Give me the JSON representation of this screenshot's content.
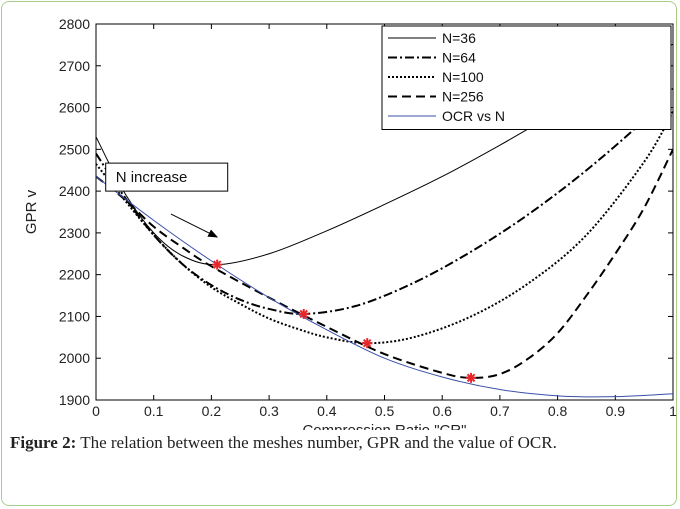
{
  "chart_data": {
    "type": "line",
    "title": "",
    "xlabel": "Compression Ratio \"CR\"",
    "ylabel": "GPR v",
    "xlim": [
      0,
      1
    ],
    "ylim": [
      1900,
      2800
    ],
    "xticks": [
      0,
      0.1,
      0.2,
      0.3,
      0.4,
      0.5,
      0.6,
      0.7,
      0.8,
      0.9,
      1
    ],
    "xtick_labels": [
      "0",
      "0.1",
      "0.2",
      "0.3",
      "0.4",
      "0.5",
      "0.6",
      "0.7",
      "0.8",
      "0.9",
      "1"
    ],
    "yticks": [
      1900,
      2000,
      2100,
      2200,
      2300,
      2400,
      2500,
      2600,
      2700,
      2800
    ],
    "grid": false,
    "legend": "top-right",
    "series": [
      {
        "name": "N=36",
        "style": "solid",
        "color": "#000000",
        "x": [
          0,
          0.05,
          0.1,
          0.15,
          0.21,
          0.3,
          0.4,
          0.5,
          0.6,
          0.7,
          0.8,
          0.9,
          1
        ],
        "y": [
          2530,
          2395,
          2300,
          2245,
          2224,
          2250,
          2305,
          2368,
          2435,
          2510,
          2590,
          2670,
          2752
        ]
      },
      {
        "name": "N=64",
        "style": "dashdot",
        "color": "#000000",
        "x": [
          0,
          0.05,
          0.1,
          0.15,
          0.2,
          0.25,
          0.3,
          0.36,
          0.45,
          0.55,
          0.65,
          0.75,
          0.85,
          0.95,
          1
        ],
        "y": [
          2490,
          2385,
          2295,
          2225,
          2175,
          2140,
          2118,
          2106,
          2125,
          2180,
          2255,
          2345,
          2450,
          2570,
          2645
        ]
      },
      {
        "name": "N=100",
        "style": "dotted",
        "color": "#000000",
        "x": [
          0,
          0.05,
          0.1,
          0.15,
          0.2,
          0.25,
          0.3,
          0.35,
          0.4,
          0.47,
          0.55,
          0.65,
          0.75,
          0.85,
          0.95,
          1
        ],
        "y": [
          2465,
          2378,
          2295,
          2225,
          2170,
          2130,
          2095,
          2070,
          2050,
          2036,
          2050,
          2100,
          2180,
          2295,
          2470,
          2590
        ]
      },
      {
        "name": "N=256",
        "style": "dashed",
        "color": "#000000",
        "x": [
          0,
          0.05,
          0.1,
          0.15,
          0.2,
          0.3,
          0.4,
          0.5,
          0.6,
          0.65,
          0.7,
          0.75,
          0.8,
          0.85,
          0.9,
          0.95,
          1
        ],
        "y": [
          2435,
          2380,
          2315,
          2265,
          2220,
          2145,
          2075,
          2010,
          1965,
          1953,
          1962,
          2000,
          2060,
          2150,
          2250,
          2360,
          2500
        ]
      },
      {
        "name": "OCR vs N",
        "style": "solid",
        "color": "#3a4fa8",
        "x": [
          0,
          0.1,
          0.2,
          0.3,
          0.4,
          0.5,
          0.6,
          0.7,
          0.8,
          0.9,
          1
        ],
        "y": [
          2435,
          2330,
          2233,
          2145,
          2068,
          2000,
          1955,
          1925,
          1910,
          1908,
          1915
        ]
      }
    ],
    "markers": {
      "color": "#e8262a",
      "x": [
        0.21,
        0.36,
        0.47,
        0.65
      ],
      "y": [
        2224,
        2106,
        2036,
        1953
      ]
    },
    "annotation": {
      "text": "N increase",
      "box_x": 0.1,
      "box_y": 2400,
      "arrow_from": [
        0.13,
        2345
      ],
      "arrow_to": [
        0.21,
        2290
      ]
    }
  },
  "caption": {
    "label": "Figure 2:",
    "text": " The relation between the meshes number, GPR and the value of OCR."
  }
}
